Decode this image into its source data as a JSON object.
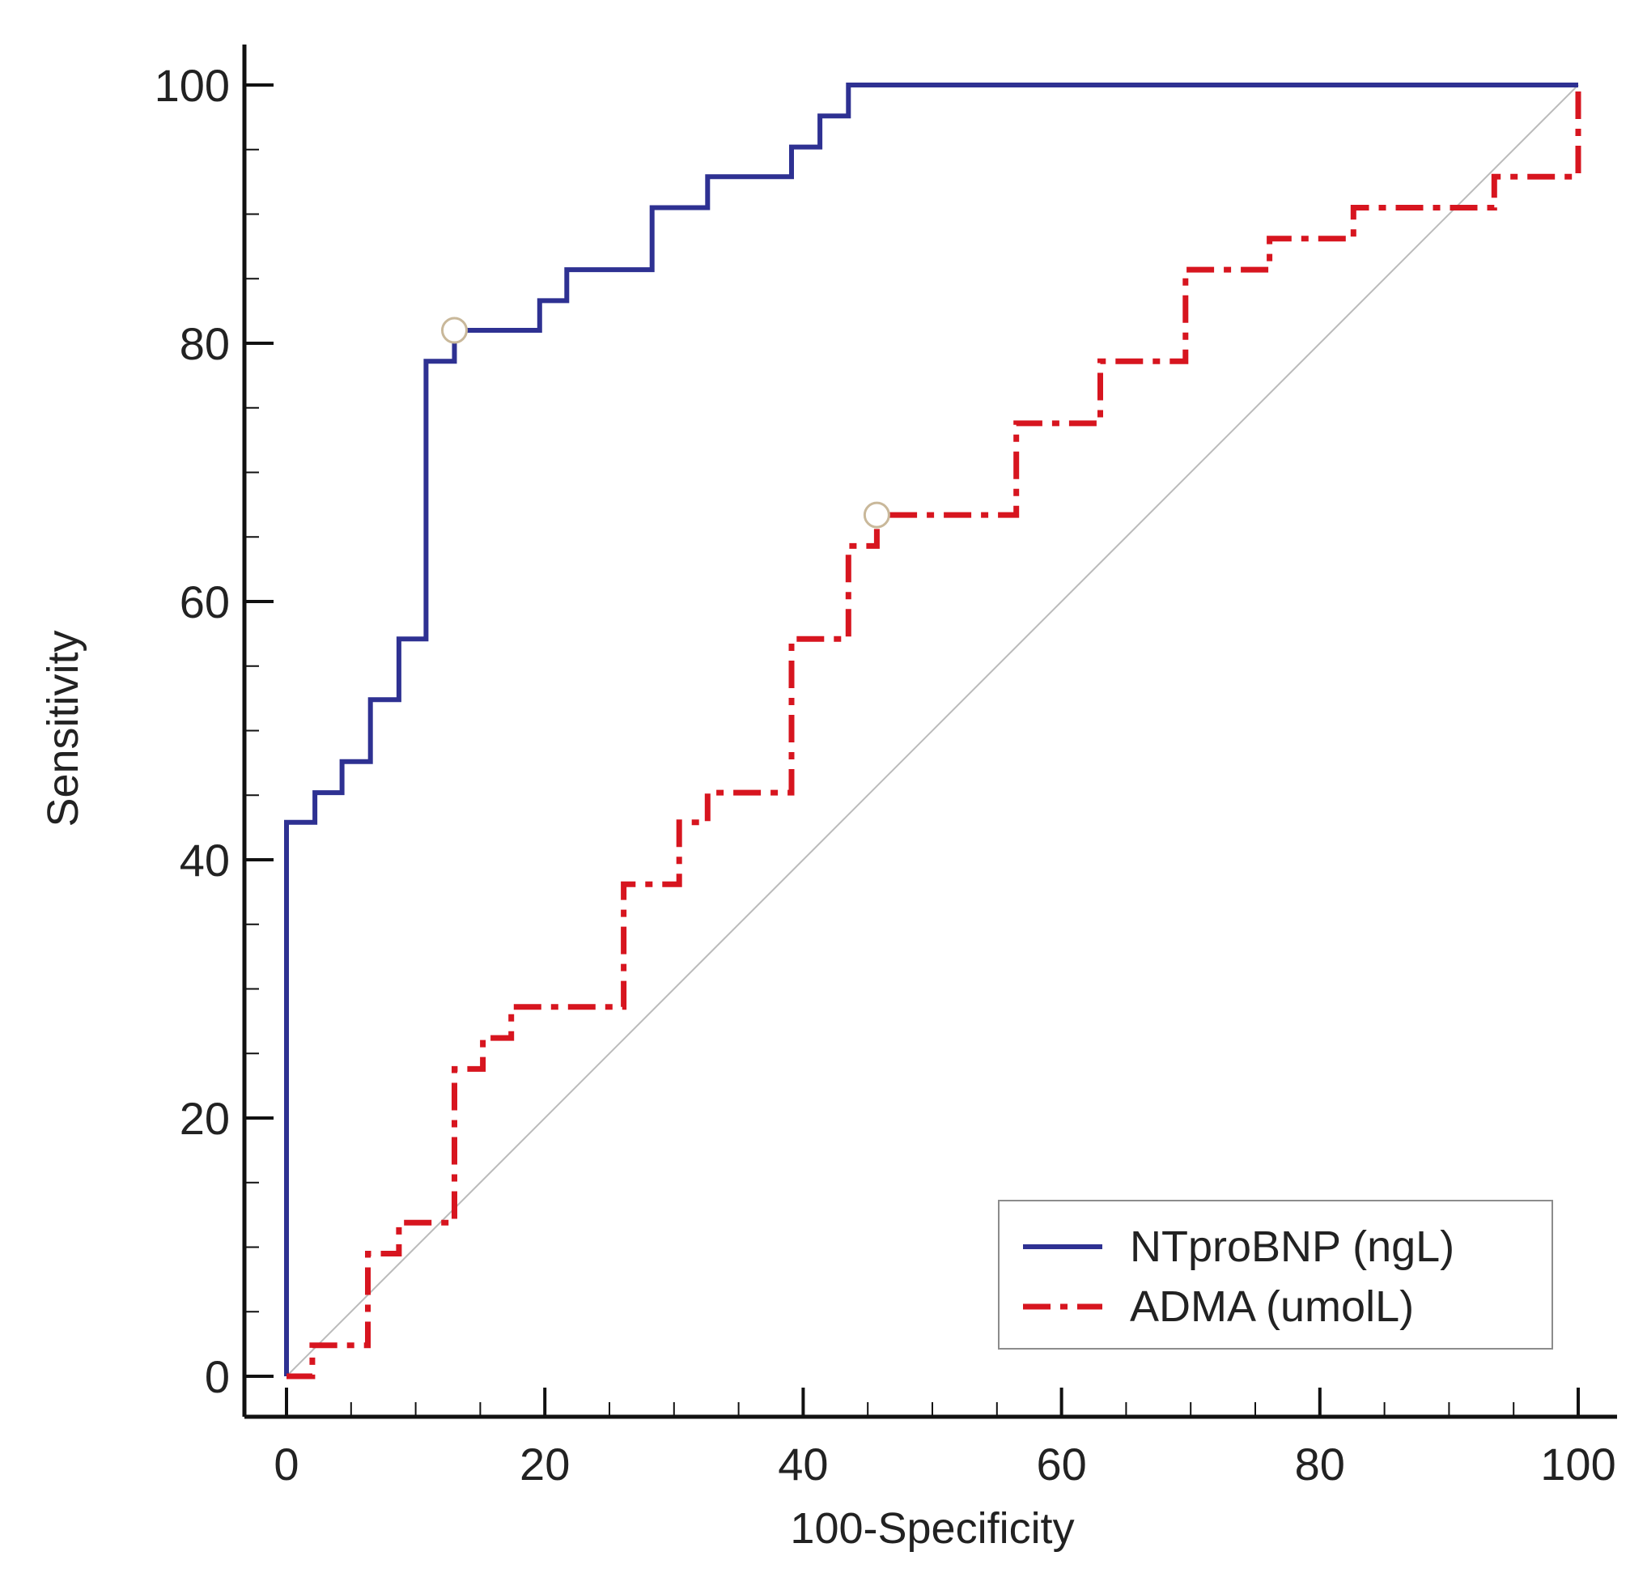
{
  "chart_data": {
    "type": "line",
    "title": "",
    "xlabel": "100-Specificity",
    "ylabel": "Sensitivity",
    "xlim": [
      0,
      100
    ],
    "ylim": [
      0,
      100
    ],
    "x_ticks": [
      0,
      20,
      40,
      60,
      80,
      100
    ],
    "x_tick_labels": [
      "0",
      "20",
      "40",
      "60",
      "80",
      "100"
    ],
    "y_ticks": [
      0,
      20,
      40,
      60,
      80,
      100
    ],
    "y_tick_labels": [
      "0",
      "20",
      "40",
      "60",
      "80",
      "100"
    ],
    "minor_tick_step": 5,
    "legend_position": "bottom-right",
    "reference_line": {
      "x": [
        0,
        100
      ],
      "y": [
        0,
        100
      ],
      "color": "#bbbbbb"
    },
    "series": [
      {
        "name": "NTproBNP (ngL)",
        "color": "#2e3192",
        "style": "solid",
        "x": [
          0,
          0,
          2.2,
          2.2,
          4.3,
          4.3,
          6.5,
          6.5,
          8.7,
          8.7,
          10.8,
          10.8,
          13.0,
          13.0,
          19.6,
          19.6,
          21.7,
          21.7,
          28.3,
          28.3,
          32.6,
          32.6,
          39.1,
          39.1,
          41.3,
          41.3,
          43.5,
          43.5,
          100
        ],
        "y": [
          0,
          42.9,
          42.9,
          45.2,
          45.2,
          47.6,
          47.6,
          52.4,
          52.4,
          57.1,
          57.1,
          78.6,
          78.6,
          81.0,
          81.0,
          83.3,
          83.3,
          85.7,
          85.7,
          90.5,
          90.5,
          92.9,
          92.9,
          95.2,
          95.2,
          97.6,
          97.6,
          100,
          100
        ],
        "optimal_point": {
          "x": 13.0,
          "y": 81.0
        }
      },
      {
        "name": "ADMA (umolL)",
        "color": "#d7151f",
        "style": "dash-dot",
        "x": [
          0,
          2.0,
          2.0,
          6.3,
          6.3,
          8.7,
          8.7,
          13.0,
          13.0,
          15.2,
          15.2,
          17.4,
          17.4,
          26.1,
          26.1,
          30.4,
          30.4,
          32.6,
          32.6,
          39.1,
          39.1,
          43.5,
          43.5,
          45.7,
          45.7,
          56.5,
          56.5,
          63.0,
          63.0,
          69.6,
          69.6,
          76.1,
          76.1,
          82.6,
          82.6,
          93.5,
          93.5,
          100,
          100
        ],
        "y": [
          0,
          0,
          2.4,
          2.4,
          9.5,
          9.5,
          11.9,
          11.9,
          23.8,
          23.8,
          26.2,
          26.2,
          28.6,
          28.6,
          38.1,
          38.1,
          42.9,
          42.9,
          45.2,
          45.2,
          57.1,
          57.1,
          64.3,
          64.3,
          66.7,
          66.7,
          73.8,
          73.8,
          78.6,
          78.6,
          85.7,
          85.7,
          88.1,
          88.1,
          90.5,
          90.5,
          92.9,
          92.9,
          100
        ],
        "optimal_point": {
          "x": 45.7,
          "y": 66.7
        }
      }
    ]
  }
}
